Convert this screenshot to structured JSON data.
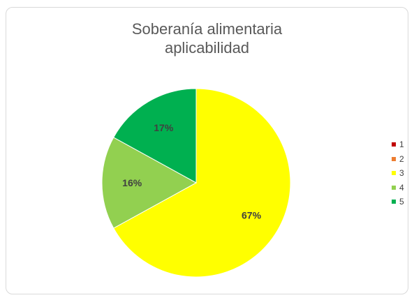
{
  "chart_data": {
    "type": "pie",
    "title": {
      "line1": "Soberanía alimentaria",
      "line2": "aplicabilidad"
    },
    "categories": [
      "1",
      "2",
      "3",
      "4",
      "5"
    ],
    "values": [
      0,
      0,
      67,
      16,
      17
    ],
    "data_labels": [
      "",
      "",
      "67%",
      "16%",
      "17%"
    ],
    "colors": [
      "#c00000",
      "#ed7d31",
      "#ffff00",
      "#92d050",
      "#00b050"
    ],
    "legend": {
      "position": "right"
    }
  }
}
